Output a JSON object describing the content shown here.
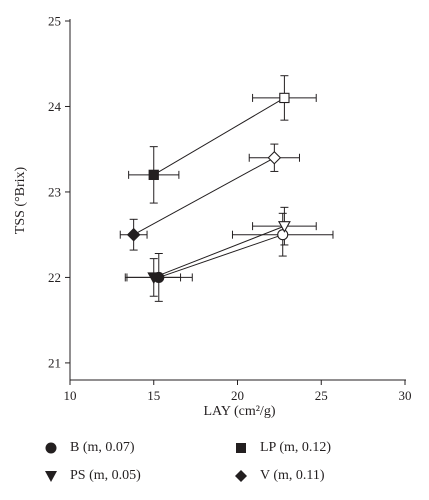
{
  "chart_data": {
    "type": "scatter",
    "title": "",
    "xlabel": "LAY (cm²/g)",
    "ylabel": "TSS (°Brix)",
    "xlim": [
      10,
      30
    ],
    "ylim": [
      20.8,
      25
    ],
    "xticks": [
      "10",
      "15",
      "20",
      "25",
      "30"
    ],
    "yticks": [
      "21",
      "22",
      "23",
      "24",
      "25"
    ],
    "colors": {
      "ink": "#231f20"
    },
    "series": [
      {
        "name": "B (m, 0.07)",
        "marker": "circle",
        "points": [
          {
            "x": 15.3,
            "y": 22.0,
            "x_err": 2.0,
            "y_err": 0.28,
            "filled": true
          },
          {
            "x": 22.7,
            "y": 22.5,
            "x_err": 3.0,
            "y_err": 0.25,
            "filled": false
          }
        ]
      },
      {
        "name": "LP (m, 0.12)",
        "marker": "square",
        "points": [
          {
            "x": 15.0,
            "y": 23.2,
            "x_err": 1.5,
            "y_err": 0.33,
            "filled": true
          },
          {
            "x": 22.8,
            "y": 24.1,
            "x_err": 1.9,
            "y_err": 0.26,
            "filled": false
          }
        ]
      },
      {
        "name": "PS (m, 0.05)",
        "marker": "triangle-down",
        "points": [
          {
            "x": 15.0,
            "y": 22.0,
            "x_err": 1.6,
            "y_err": 0.22,
            "filled": true
          },
          {
            "x": 22.8,
            "y": 22.6,
            "x_err": 1.9,
            "y_err": 0.22,
            "filled": false
          }
        ]
      },
      {
        "name": "V (m, 0.11)",
        "marker": "diamond",
        "points": [
          {
            "x": 13.8,
            "y": 22.5,
            "x_err": 0.8,
            "y_err": 0.18,
            "filled": true
          },
          {
            "x": 22.2,
            "y": 23.4,
            "x_err": 1.5,
            "y_err": 0.16,
            "filled": false
          }
        ]
      }
    ]
  },
  "legend": [
    {
      "label": "B (m, 0.07)",
      "marker": "circle"
    },
    {
      "label": "LP (m, 0.12)",
      "marker": "square"
    },
    {
      "label": "PS (m, 0.05)",
      "marker": "triangle-down"
    },
    {
      "label": "V (m, 0.11)",
      "marker": "diamond"
    }
  ]
}
